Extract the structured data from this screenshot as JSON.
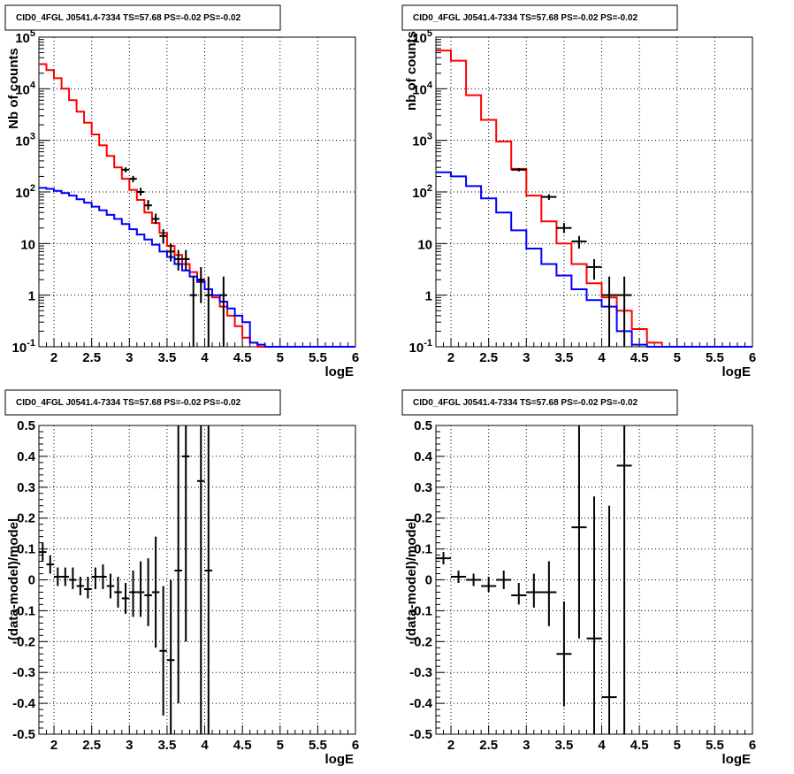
{
  "chart_data": [
    {
      "type": "line",
      "title": "CID0_4FGL J0541.4-7334 TS=57.68 PS=-0.02 PS=-0.02",
      "xlabel": "logE",
      "ylabel": "Nb of counts",
      "xlim": [
        1.8,
        6
      ],
      "ylim": [
        0.1,
        100000
      ],
      "yscale": "log",
      "grid": true,
      "x_ticks": [
        "2",
        "2.5",
        "3",
        "3.5",
        "4",
        "4.5",
        "5",
        "5.5",
        "6"
      ],
      "y_ticks": [
        "10^-1",
        "1",
        "10",
        "10^2",
        "10^3",
        "10^4",
        "10^5"
      ],
      "bin_edges": [
        1.8,
        1.9,
        2.0,
        2.1,
        2.2,
        2.3,
        2.4,
        2.5,
        2.6,
        2.7,
        2.8,
        2.9,
        3.0,
        3.1,
        3.2,
        3.3,
        3.4,
        3.5,
        3.6,
        3.7,
        3.8,
        3.9,
        4.0,
        4.1,
        4.2,
        4.3,
        4.4,
        4.5,
        4.6,
        4.7,
        4.8,
        4.9,
        5.0,
        5.1,
        5.2,
        5.3,
        5.4,
        5.5,
        5.6,
        5.7,
        5.8,
        5.9,
        6.0
      ],
      "series": [
        {
          "color": "#ff0000",
          "values": [
            30000,
            23000,
            16000,
            10000,
            6000,
            3600,
            2200,
            1300,
            800,
            500,
            300,
            180,
            110,
            70,
            40,
            25,
            16,
            9,
            6,
            4,
            2.8,
            1.9,
            1.3,
            0.9,
            0.6,
            0.4,
            0.25,
            0.15,
            0.12,
            0.1,
            0.1,
            0.1,
            0.1,
            0.1,
            0.1,
            0.1,
            0.1,
            0.1,
            0.1,
            0.1,
            0.1,
            0.1
          ]
        },
        {
          "color": "#0000ff",
          "values": [
            120,
            115,
            105,
            95,
            85,
            72,
            62,
            52,
            44,
            36,
            30,
            24,
            19,
            15,
            12,
            9.5,
            7,
            5.5,
            4,
            3,
            2.3,
            1.8,
            1.3,
            1.0,
            0.75,
            0.55,
            0.4,
            0.3,
            0.12,
            0.11,
            0.1,
            0.1,
            0.1,
            0.1,
            0.1,
            0.1,
            0.1,
            0.1,
            0.1,
            0.1,
            0.1,
            0.1
          ]
        }
      ],
      "data_points": [
        {
          "x": 2.95,
          "y": 270,
          "xerr": 0.05,
          "ylo": 240,
          "yhi": 300
        },
        {
          "x": 3.05,
          "y": 180,
          "xerr": 0.05,
          "ylo": 155,
          "yhi": 205
        },
        {
          "x": 3.15,
          "y": 100,
          "xerr": 0.05,
          "ylo": 85,
          "yhi": 120
        },
        {
          "x": 3.25,
          "y": 55,
          "xerr": 0.05,
          "ylo": 45,
          "yhi": 70
        },
        {
          "x": 3.35,
          "y": 30,
          "xerr": 0.05,
          "ylo": 24,
          "yhi": 38
        },
        {
          "x": 3.45,
          "y": 14,
          "xerr": 0.05,
          "ylo": 10,
          "yhi": 19
        },
        {
          "x": 3.55,
          "y": 7,
          "xerr": 0.05,
          "ylo": 4.5,
          "yhi": 10
        },
        {
          "x": 3.65,
          "y": 5,
          "xerr": 0.05,
          "ylo": 3,
          "yhi": 7.5
        },
        {
          "x": 3.75,
          "y": 5,
          "xerr": 0.05,
          "ylo": 3,
          "yhi": 7.5
        },
        {
          "x": 3.85,
          "y": 1,
          "xerr": 0.05,
          "ylo": 0.1,
          "yhi": 2.3
        },
        {
          "x": 3.95,
          "y": 2,
          "xerr": 0.05,
          "ylo": 0.7,
          "yhi": 3.5
        },
        {
          "x": 4.05,
          "y": 1,
          "xerr": 0.05,
          "ylo": 0.1,
          "yhi": 2.3
        },
        {
          "x": 4.25,
          "y": 1,
          "xerr": 0.05,
          "ylo": 0.1,
          "yhi": 2.3
        }
      ]
    },
    {
      "type": "line",
      "title": "CID0_4FGL J0541.4-7334 TS=57.68 PS=-0.02 PS=-0.02",
      "xlabel": "logE",
      "ylabel": "nb of counts",
      "xlim": [
        1.8,
        6
      ],
      "ylim": [
        0.1,
        100000
      ],
      "yscale": "log",
      "grid": true,
      "x_ticks": [
        "2",
        "2.5",
        "3",
        "3.5",
        "4",
        "4.5",
        "5",
        "5.5",
        "6"
      ],
      "y_ticks": [
        "10^-1",
        "1",
        "10",
        "10^2",
        "10^3",
        "10^4",
        "10^5"
      ],
      "bin_edges": [
        1.8,
        2.0,
        2.2,
        2.4,
        2.6,
        2.8,
        3.0,
        3.2,
        3.4,
        3.6,
        3.8,
        4.0,
        4.2,
        4.4,
        4.6,
        4.8,
        5.0,
        5.2,
        5.4,
        5.6,
        5.8,
        6.0
      ],
      "series": [
        {
          "color": "#ff0000",
          "values": [
            55000,
            35000,
            7500,
            2500,
            950,
            280,
            85,
            27,
            10,
            4,
            1.7,
            0.9,
            0.5,
            0.22,
            0.12,
            0.1,
            0.1,
            0.1,
            0.1,
            0.1,
            0.1
          ]
        },
        {
          "color": "#0000ff",
          "values": [
            240,
            200,
            130,
            75,
            40,
            18,
            8,
            4,
            2.4,
            1.3,
            0.8,
            0.6,
            0.2,
            0.11,
            0.1,
            0.1,
            0.1,
            0.1,
            0.1,
            0.1,
            0.1
          ]
        }
      ],
      "data_points": [
        {
          "x": 2.9,
          "y": 270,
          "xerr": 0.1,
          "ylo": 250,
          "yhi": 290
        },
        {
          "x": 3.3,
          "y": 80,
          "xerr": 0.1,
          "ylo": 70,
          "yhi": 90
        },
        {
          "x": 3.5,
          "y": 20,
          "xerr": 0.1,
          "ylo": 16,
          "yhi": 25
        },
        {
          "x": 3.7,
          "y": 11,
          "xerr": 0.1,
          "ylo": 8,
          "yhi": 14
        },
        {
          "x": 3.9,
          "y": 3.5,
          "xerr": 0.1,
          "ylo": 2,
          "yhi": 5
        },
        {
          "x": 4.1,
          "y": 1,
          "xerr": 0.1,
          "ylo": 0.1,
          "yhi": 2.3
        },
        {
          "x": 4.3,
          "y": 1,
          "xerr": 0.1,
          "ylo": 0.1,
          "yhi": 2.3
        }
      ]
    },
    {
      "type": "scatter",
      "title": "CID0_4FGL J0541.4-7334 TS=57.68 PS=-0.02 PS=-0.02",
      "xlabel": "logE",
      "ylabel": "(data-model)/model",
      "xlim": [
        1.8,
        6
      ],
      "ylim": [
        -0.5,
        0.5
      ],
      "grid": true,
      "x_ticks": [
        "2",
        "2.5",
        "3",
        "3.5",
        "4",
        "4.5",
        "5",
        "5.5",
        "6"
      ],
      "y_ticks": [
        "-0.5",
        "-0.4",
        "-0.3",
        "-0.2",
        "-0.1",
        "0",
        "0.1",
        "0.2",
        "0.3",
        "0.4",
        "0.5"
      ],
      "data_points": [
        {
          "x": 1.85,
          "y": 0.09,
          "xerr": 0.05,
          "ylo": 0.06,
          "yhi": 0.12
        },
        {
          "x": 1.95,
          "y": 0.05,
          "xerr": 0.05,
          "ylo": 0.02,
          "yhi": 0.08
        },
        {
          "x": 2.05,
          "y": 0.01,
          "xerr": 0.05,
          "ylo": -0.02,
          "yhi": 0.04
        },
        {
          "x": 2.15,
          "y": 0.01,
          "xerr": 0.05,
          "ylo": -0.02,
          "yhi": 0.04
        },
        {
          "x": 2.25,
          "y": 0.0,
          "xerr": 0.05,
          "ylo": -0.03,
          "yhi": 0.04
        },
        {
          "x": 2.35,
          "y": -0.02,
          "xerr": 0.05,
          "ylo": -0.05,
          "yhi": 0.01
        },
        {
          "x": 2.45,
          "y": -0.03,
          "xerr": 0.05,
          "ylo": -0.06,
          "yhi": 0.01
        },
        {
          "x": 2.55,
          "y": 0.01,
          "xerr": 0.05,
          "ylo": -0.03,
          "yhi": 0.04
        },
        {
          "x": 2.65,
          "y": 0.01,
          "xerr": 0.05,
          "ylo": -0.03,
          "yhi": 0.05
        },
        {
          "x": 2.75,
          "y": -0.02,
          "xerr": 0.05,
          "ylo": -0.06,
          "yhi": 0.02
        },
        {
          "x": 2.85,
          "y": -0.04,
          "xerr": 0.05,
          "ylo": -0.09,
          "yhi": 0.01
        },
        {
          "x": 2.95,
          "y": -0.06,
          "xerr": 0.05,
          "ylo": -0.11,
          "yhi": -0.01
        },
        {
          "x": 3.05,
          "y": -0.04,
          "xerr": 0.05,
          "ylo": -0.12,
          "yhi": 0.03
        },
        {
          "x": 3.15,
          "y": -0.04,
          "xerr": 0.05,
          "ylo": -0.12,
          "yhi": 0.06
        },
        {
          "x": 3.25,
          "y": -0.05,
          "xerr": 0.05,
          "ylo": -0.15,
          "yhi": 0.07
        },
        {
          "x": 3.35,
          "y": -0.04,
          "xerr": 0.05,
          "ylo": -0.22,
          "yhi": 0.14
        },
        {
          "x": 3.45,
          "y": -0.23,
          "xerr": 0.05,
          "ylo": -0.44,
          "yhi": -0.02
        },
        {
          "x": 3.55,
          "y": -0.26,
          "xerr": 0.05,
          "ylo": -0.5,
          "yhi": 0.0
        },
        {
          "x": 3.65,
          "y": 0.03,
          "xerr": 0.05,
          "ylo": -0.4,
          "yhi": 0.5
        },
        {
          "x": 3.75,
          "y": 0.4,
          "xerr": 0.05,
          "ylo": -0.2,
          "yhi": 0.5
        },
        {
          "x": 3.95,
          "y": 0.32,
          "xerr": 0.05,
          "ylo": -0.5,
          "yhi": 0.5
        },
        {
          "x": 4.05,
          "y": 0.03,
          "xerr": 0.05,
          "ylo": -0.5,
          "yhi": 0.5
        }
      ]
    },
    {
      "type": "scatter",
      "title": "CID0_4FGL J0541.4-7334 TS=57.68 PS=-0.02 PS=-0.02",
      "xlabel": "logE",
      "ylabel": "(data-model)/model",
      "xlim": [
        1.8,
        6
      ],
      "ylim": [
        -0.5,
        0.5
      ],
      "grid": true,
      "x_ticks": [
        "2",
        "2.5",
        "3",
        "3.5",
        "4",
        "4.5",
        "5",
        "5.5",
        "6"
      ],
      "y_ticks": [
        "-0.5",
        "-0.4",
        "-0.3",
        "-0.2",
        "-0.1",
        "0",
        "0.1",
        "0.2",
        "0.3",
        "0.4",
        "0.5"
      ],
      "data_points": [
        {
          "x": 1.9,
          "y": 0.07,
          "xerr": 0.1,
          "ylo": 0.05,
          "yhi": 0.09
        },
        {
          "x": 2.1,
          "y": 0.01,
          "xerr": 0.1,
          "ylo": -0.01,
          "yhi": 0.03
        },
        {
          "x": 2.3,
          "y": 0.0,
          "xerr": 0.1,
          "ylo": -0.02,
          "yhi": 0.02
        },
        {
          "x": 2.5,
          "y": -0.02,
          "xerr": 0.1,
          "ylo": -0.04,
          "yhi": 0.01
        },
        {
          "x": 2.7,
          "y": 0.0,
          "xerr": 0.1,
          "ylo": -0.03,
          "yhi": 0.03
        },
        {
          "x": 2.9,
          "y": -0.05,
          "xerr": 0.1,
          "ylo": -0.08,
          "yhi": -0.01
        },
        {
          "x": 3.1,
          "y": -0.04,
          "xerr": 0.1,
          "ylo": -0.09,
          "yhi": 0.02
        },
        {
          "x": 3.3,
          "y": -0.04,
          "xerr": 0.1,
          "ylo": -0.15,
          "yhi": 0.06
        },
        {
          "x": 3.5,
          "y": -0.24,
          "xerr": 0.1,
          "ylo": -0.41,
          "yhi": -0.07
        },
        {
          "x": 3.7,
          "y": 0.17,
          "xerr": 0.1,
          "ylo": -0.19,
          "yhi": 0.5
        },
        {
          "x": 3.9,
          "y": -0.19,
          "xerr": 0.1,
          "ylo": -0.5,
          "yhi": 0.27
        },
        {
          "x": 4.1,
          "y": -0.38,
          "xerr": 0.1,
          "ylo": -0.5,
          "yhi": 0.24
        },
        {
          "x": 4.3,
          "y": 0.37,
          "xerr": 0.1,
          "ylo": -0.5,
          "yhi": 0.5
        }
      ]
    }
  ]
}
